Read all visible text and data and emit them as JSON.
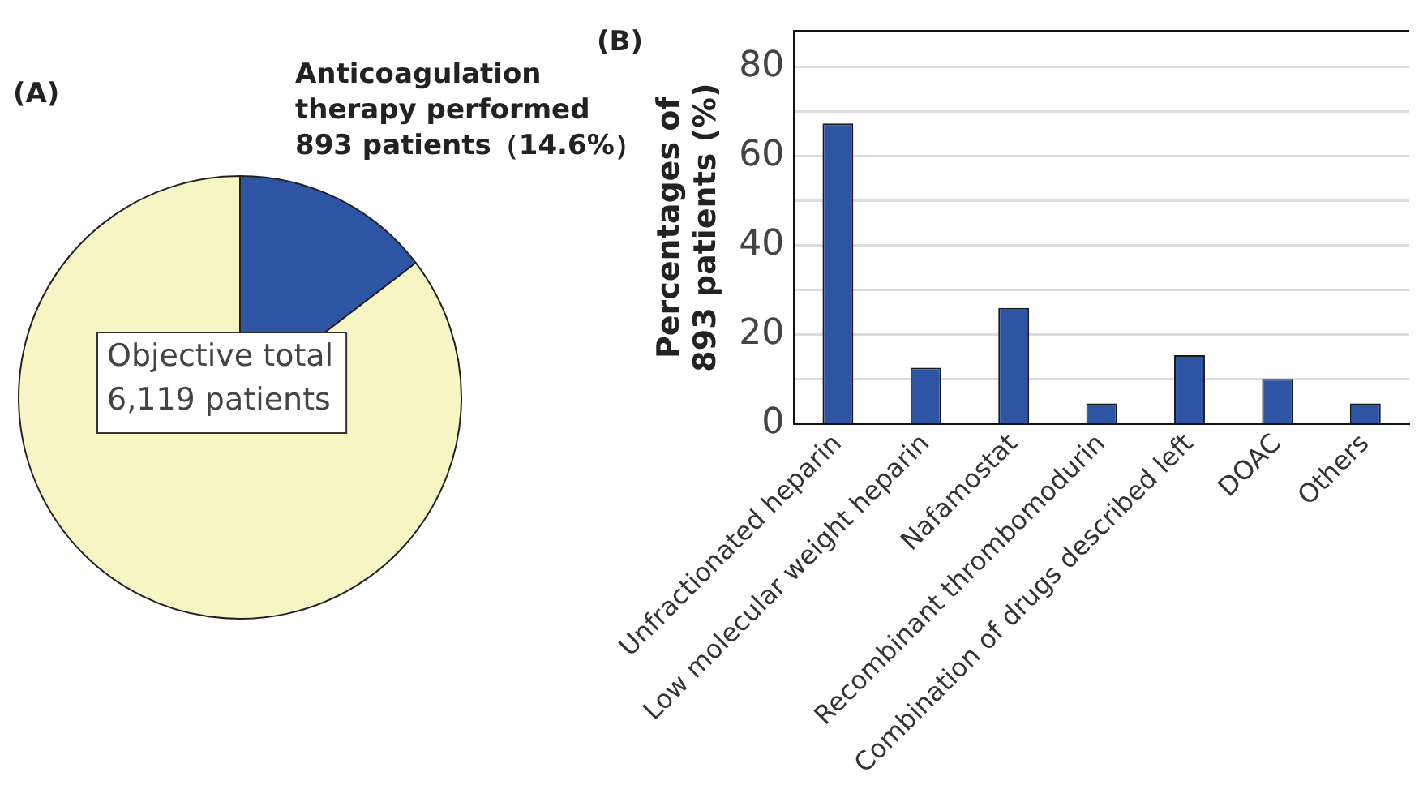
{
  "chart_data": [
    {
      "type": "pie",
      "title": "(A)",
      "categories": [
        "Anticoagulation therapy performed 893 patients（14.6%）",
        "Objective total 6,119 patients"
      ],
      "values": [
        14.6,
        85.4
      ],
      "colors": [
        "#2e55a3",
        "#f6f5c3"
      ]
    },
    {
      "type": "bar",
      "title": "(B)",
      "categories": [
        "Unfractionated heparin",
        "Low molecular weight heparin",
        "Nafamostat",
        "Recombinant thrombomodurin",
        "Combination of drugs described left",
        "DOAC",
        "Others"
      ],
      "values": [
        67.3,
        12.6,
        26.0,
        4.6,
        15.4,
        10.1,
        4.6
      ],
      "color": "#2e55a3",
      "ylabel": "Percentages of 893 patients (%)",
      "ylim": [
        0,
        88
      ],
      "yticks": [
        0,
        {
          "value": 10,
          "label": null
        },
        20,
        {
          "value": 30,
          "label": null
        },
        40,
        {
          "value": 50,
          "label": null
        },
        60,
        {
          "value": 70,
          "label": null
        },
        80
      ],
      "grid": "y"
    }
  ]
}
